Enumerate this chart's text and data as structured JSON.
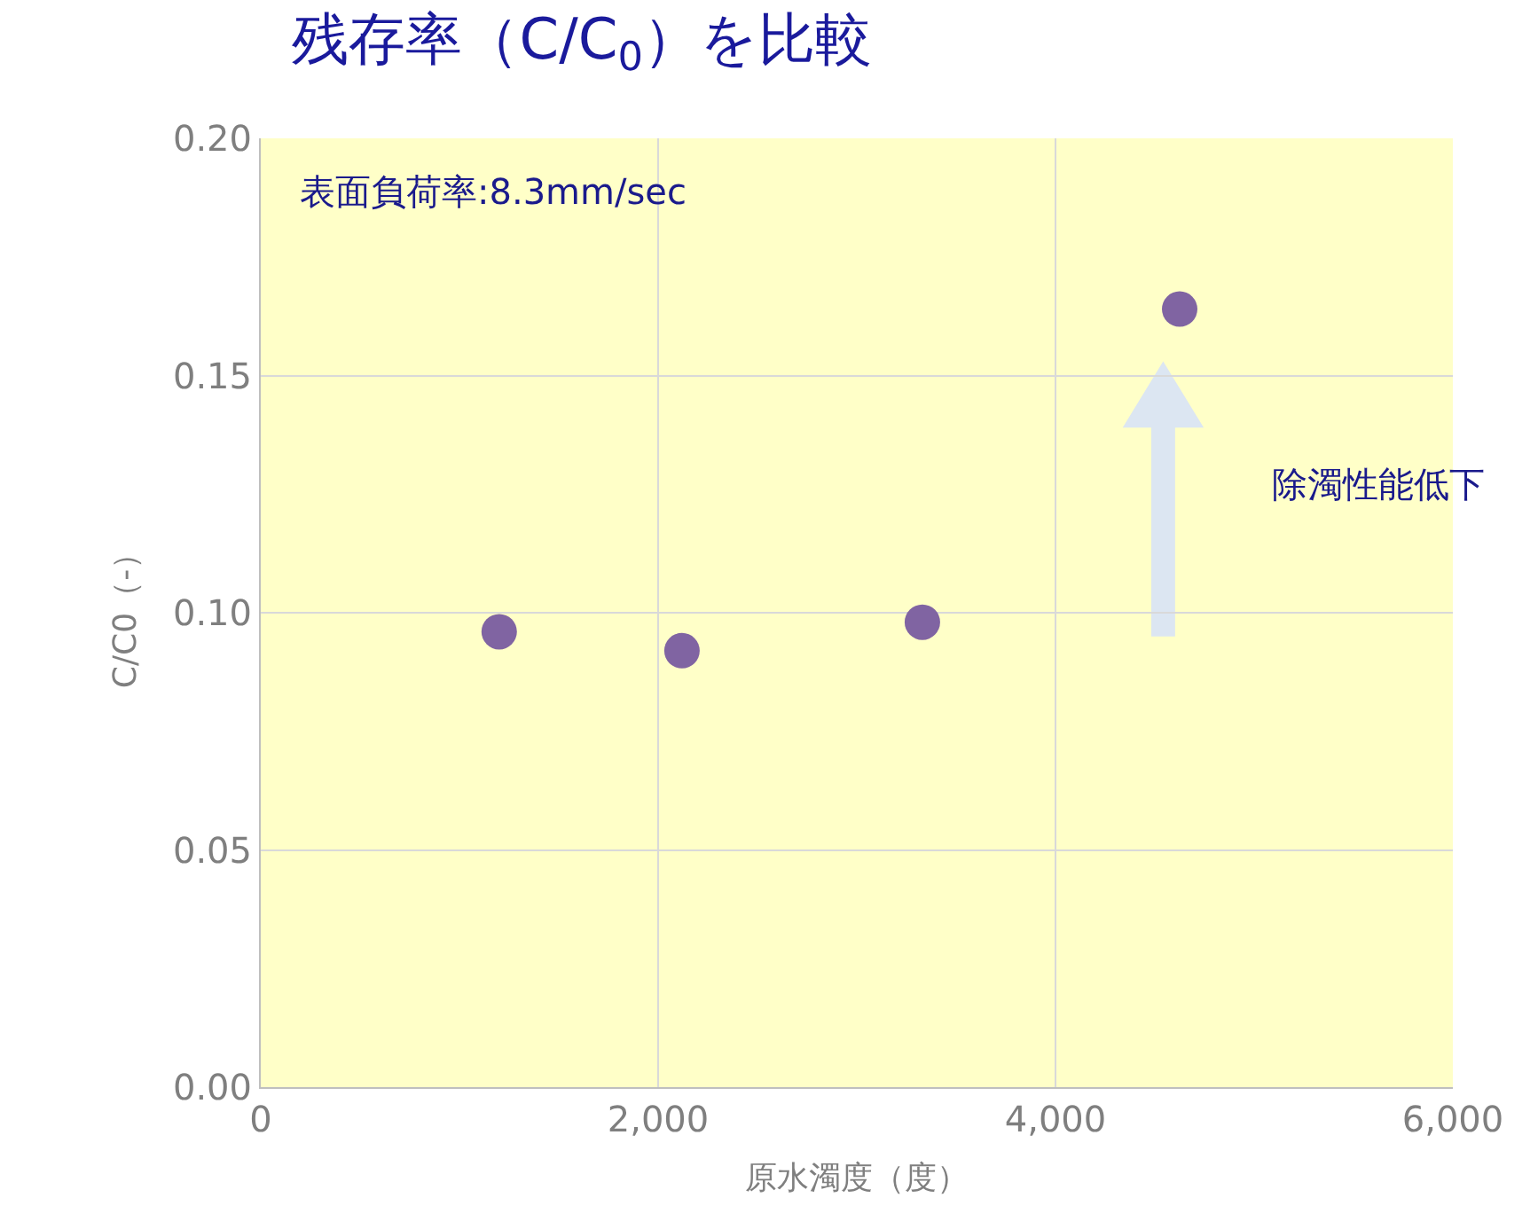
{
  "chart_data": {
    "type": "scatter",
    "title": "残存率（C/C$_{0}$）を比較",
    "xlabel": "原水濁度（度）",
    "ylabel": "C/C0（-）",
    "annotations": [
      "表面負荷率:8.3mm/sec",
      "除濁性能低下"
    ],
    "x": [
      1200,
      2120,
      3330,
      4625
    ],
    "series": [
      {
        "color": "#8064a2",
        "values": [
          0.096,
          0.092,
          0.098,
          0.164
        ]
      }
    ],
    "xlim": [
      0,
      6000
    ],
    "xticks": [
      0,
      {
        "value": 2000,
        "label": "2,000"
      },
      {
        "value": 4000,
        "label": "4,000"
      },
      {
        "value": 6000,
        "label": "6,000"
      }
    ],
    "ylim": [
      0,
      0.2
    ],
    "yticks": [
      {
        "value": 0,
        "label": "0.00"
      },
      {
        "value": 0.05,
        "label": "0.05"
      },
      {
        "value": 0.1,
        "label": "0.10"
      },
      {
        "value": 0.15,
        "label": "0.15"
      },
      {
        "value": 0.2,
        "label": "0.20"
      }
    ],
    "grid": true,
    "marker": "circle"
  }
}
